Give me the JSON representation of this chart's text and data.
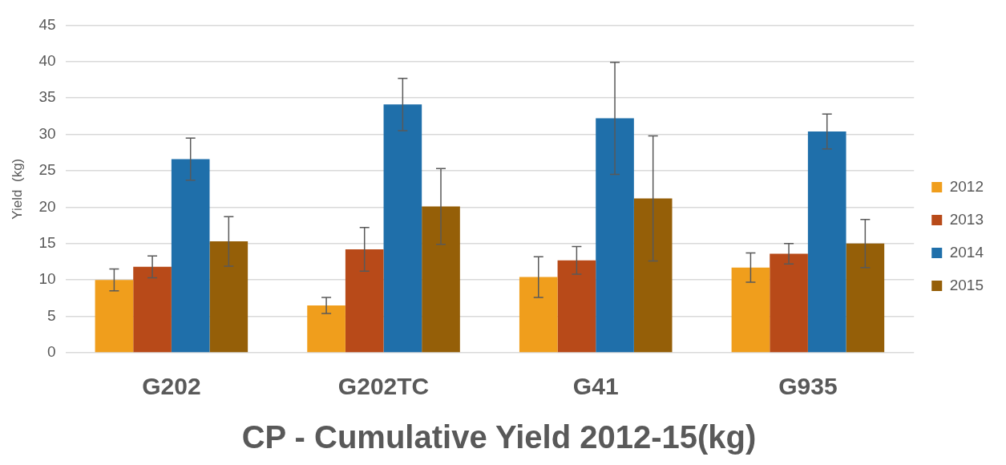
{
  "chart_data": {
    "type": "bar",
    "title": "CP - Cumulative Yield 2012-15(kg)",
    "ylabel": "Yield  (kg)",
    "categories": [
      "G202",
      "G202TC",
      "G41",
      "G935"
    ],
    "series": [
      {
        "name": "2012",
        "color": "#f09e1c",
        "values": [
          10.0,
          6.5,
          10.4,
          11.7
        ],
        "errors": [
          1.5,
          1.1,
          2.8,
          2.0
        ]
      },
      {
        "name": "2013",
        "color": "#b84a19",
        "values": [
          11.8,
          14.2,
          12.7,
          13.6
        ],
        "errors": [
          1.5,
          3.0,
          1.9,
          1.4
        ]
      },
      {
        "name": "2014",
        "color": "#1f6faa",
        "values": [
          26.6,
          34.1,
          32.2,
          30.4
        ],
        "errors": [
          2.9,
          3.6,
          7.7,
          2.4
        ]
      },
      {
        "name": "2015",
        "color": "#955f08",
        "values": [
          15.3,
          20.1,
          21.2,
          15.0
        ],
        "errors": [
          3.4,
          5.2,
          8.6,
          3.3
        ]
      }
    ],
    "ylim": [
      0,
      45
    ],
    "yticks": [
      0,
      5,
      10,
      15,
      20,
      25,
      30,
      35,
      40,
      45
    ],
    "grid": "y",
    "legend": "right"
  }
}
